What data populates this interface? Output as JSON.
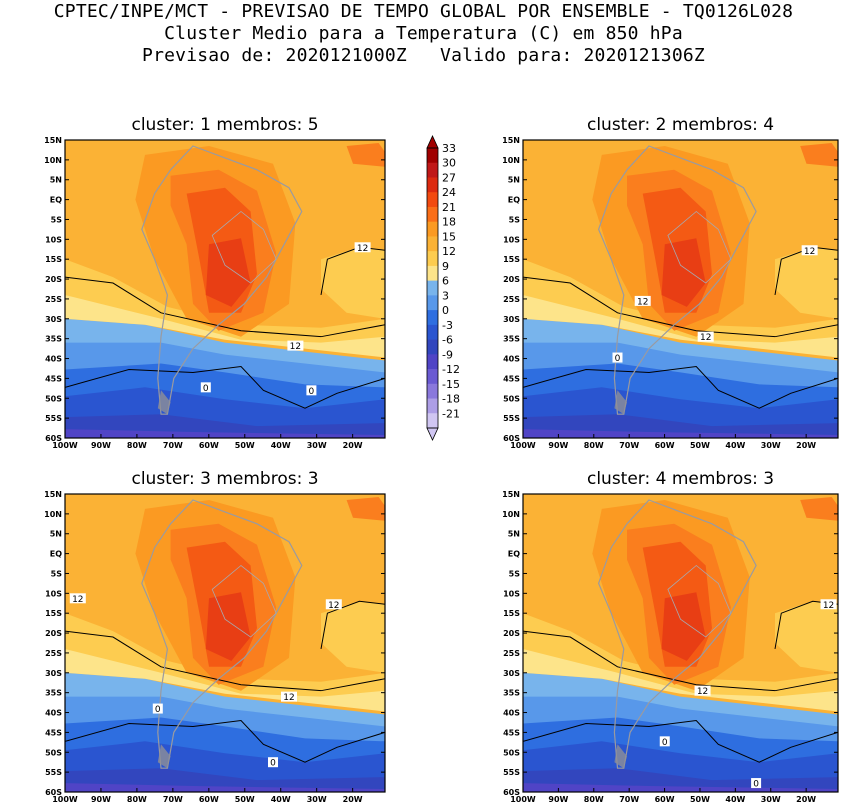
{
  "header": {
    "line1": "CPTEC/INPE/MCT - PREVISAO DE TEMPO GLOBAL POR ENSEMBLE - TQ0126L028",
    "line2": "Cluster Medio para a Temperatura (C) em 850 hPa",
    "line3": "Previsao de: 2020121000Z   Valido para: 2020121306Z"
  },
  "colorbar": {
    "labels": [
      "33",
      "30",
      "27",
      "24",
      "21",
      "18",
      "15",
      "12",
      "9",
      "6",
      "3",
      "0",
      "-3",
      "-6",
      "-9",
      "-12",
      "-15",
      "-18",
      "-21"
    ],
    "colors": [
      "#a00000",
      "#c01818",
      "#dc2a10",
      "#f24a10",
      "#fa6e18",
      "#fb9a22",
      "#fbb235",
      "#fdcc50",
      "#fde48a",
      "#78b4ec",
      "#5898ea",
      "#2e6ee0",
      "#2a55d0",
      "#3246be",
      "#5044c6",
      "#6a5ad2",
      "#8a78dc",
      "#ad9ee6",
      "#d0c6f2"
    ]
  },
  "axes": {
    "lat_labels": [
      "15N",
      "10N",
      "5N",
      "EQ",
      "5S",
      "10S",
      "15S",
      "20S",
      "25S",
      "30S",
      "35S",
      "40S",
      "45S",
      "50S",
      "55S",
      "60S"
    ],
    "lon_labels": [
      "100W",
      "90W",
      "80W",
      "70W",
      "60W",
      "50W",
      "40W",
      "30W",
      "20W"
    ]
  },
  "panels": [
    {
      "title": "cluster: 1   membros: 5",
      "contour_labels": [
        "12",
        "12",
        "0",
        "0"
      ]
    },
    {
      "title": "cluster: 2   membros: 4",
      "contour_labels": [
        "12",
        "12",
        "12",
        "0"
      ]
    },
    {
      "title": "cluster: 3   membros: 3",
      "contour_labels": [
        "12",
        "12",
        "12",
        "0",
        "0"
      ]
    },
    {
      "title": "cluster: 4   membros: 3",
      "contour_labels": [
        "12",
        "12",
        "0",
        "0"
      ]
    }
  ]
}
